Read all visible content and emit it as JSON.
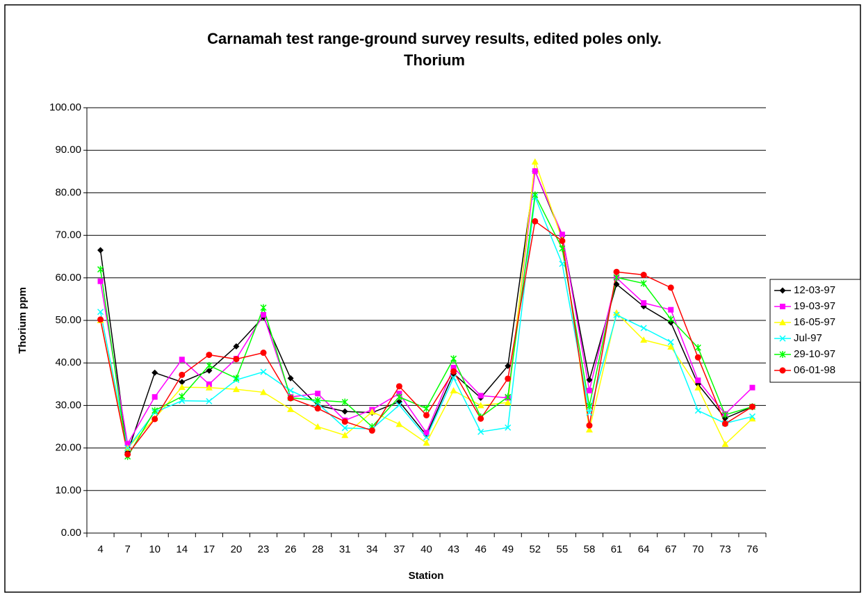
{
  "chart_data": {
    "type": "line",
    "title": [
      "Carnamah test range-ground survey results, edited poles only.",
      "Thorium"
    ],
    "x_label": "Station",
    "y_label": "Thorium ppm",
    "categories": [
      "4",
      "7",
      "10",
      "14",
      "17",
      "20",
      "23",
      "26",
      "28",
      "31",
      "34",
      "37",
      "40",
      "43",
      "46",
      "49",
      "52",
      "55",
      "58",
      "61",
      "64",
      "67",
      "70",
      "73",
      "76"
    ],
    "ylim": [
      0,
      100
    ],
    "yticks": [
      {
        "value": 0,
        "label": "0.00"
      },
      {
        "value": 10,
        "label": "10.00"
      },
      {
        "value": 20,
        "label": "20.00"
      },
      {
        "value": 30,
        "label": "30.00"
      },
      {
        "value": 40,
        "label": "40.00"
      },
      {
        "value": 50,
        "label": "50.00"
      },
      {
        "value": 60,
        "label": "60.00"
      },
      {
        "value": 70,
        "label": "70.00"
      },
      {
        "value": 80,
        "label": "80.00"
      },
      {
        "value": 90,
        "label": "90.00"
      },
      {
        "value": 100,
        "label": "100.00"
      }
    ],
    "grid": true,
    "legend": "right",
    "series": [
      {
        "name": "12-03-97",
        "color": "#000000",
        "marker": "diamond",
        "values": [
          66.5,
          19,
          37.7,
          35.5,
          38.2,
          43.9,
          50.8,
          36.4,
          30,
          28.6,
          28.3,
          30.9,
          23,
          37.5,
          31.8,
          39.3,
          85.1,
          69.8,
          36,
          58.5,
          53.3,
          49.5,
          35,
          27,
          29.7
        ]
      },
      {
        "name": "19-03-97",
        "color": "#ff00ff",
        "marker": "square",
        "values": [
          59.2,
          21,
          32,
          40.8,
          35,
          41,
          51.3,
          32,
          32.8,
          26.5,
          29,
          32.8,
          23.6,
          38.9,
          32.3,
          31.8,
          85.1,
          70.2,
          33.5,
          60,
          54.1,
          52.5,
          35.9,
          28,
          34.2
        ]
      },
      {
        "name": "16-05-97",
        "color": "#ffff00",
        "marker": "triangle",
        "values": [
          50,
          20,
          27,
          34.3,
          34.2,
          33.8,
          33.1,
          29.1,
          25,
          23,
          28.5,
          25.6,
          21.2,
          33.5,
          30,
          30.7,
          87.3,
          69,
          24.3,
          51.8,
          45.4,
          43.8,
          34.2,
          20.9,
          26.9
        ]
      },
      {
        "name": "Jul-97",
        "color": "#00ffff",
        "marker": "x",
        "values": [
          52,
          20,
          28.4,
          31.1,
          31,
          36,
          37.9,
          33.5,
          30.5,
          24.7,
          24.5,
          30.1,
          22.5,
          36.5,
          23.8,
          24.8,
          79,
          63.3,
          28.3,
          51.3,
          48.2,
          44.9,
          28.8,
          25.8,
          27.4
        ]
      },
      {
        "name": "29-10-97",
        "color": "#00ff00",
        "marker": "star",
        "values": [
          62,
          18,
          28.8,
          32.1,
          39.4,
          36.4,
          53,
          31.8,
          31.2,
          30.8,
          25,
          32,
          29.3,
          41,
          27.3,
          32,
          79.5,
          66.9,
          29.9,
          60.1,
          58.7,
          50.3,
          43.6,
          27.8,
          29.7
        ]
      },
      {
        "name": "06-01-98",
        "color": "#ff0000",
        "marker": "circle",
        "values": [
          50.2,
          18.5,
          26.8,
          37.2,
          41.9,
          40.9,
          42.4,
          31.7,
          29.3,
          26.2,
          24.1,
          34.5,
          27.7,
          38,
          26.9,
          36.3,
          73.3,
          68.7,
          25.3,
          61.4,
          60.7,
          57.7,
          41.3,
          25.7,
          29.7
        ]
      }
    ]
  }
}
